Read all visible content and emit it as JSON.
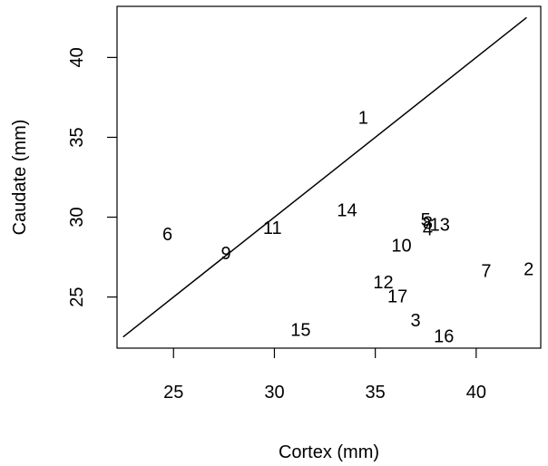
{
  "chart_data": {
    "type": "scatter",
    "title": "",
    "xlabel": "Cortex (mm)",
    "ylabel": "Caudate (mm)",
    "xlim": [
      22.2,
      43.2
    ],
    "ylim": [
      21.8,
      43.2
    ],
    "xticks": [
      25,
      30,
      35,
      40
    ],
    "yticks": [
      25,
      30,
      35,
      40
    ],
    "grid": false,
    "reference_line": {
      "from": [
        22.5,
        22.5
      ],
      "to": [
        42.5,
        42.5
      ]
    },
    "points": [
      {
        "label": "1",
        "x": 34.4,
        "y": 36.2
      },
      {
        "label": "2",
        "x": 42.6,
        "y": 26.7
      },
      {
        "label": "3",
        "x": 37.0,
        "y": 23.5
      },
      {
        "label": "4",
        "x": 37.6,
        "y": 29.2
      },
      {
        "label": "5",
        "x": 37.5,
        "y": 29.8
      },
      {
        "label": "6",
        "x": 24.7,
        "y": 28.9
      },
      {
        "label": "7",
        "x": 40.5,
        "y": 26.6
      },
      {
        "label": "8",
        "x": 37.6,
        "y": 29.6
      },
      {
        "label": "9",
        "x": 27.6,
        "y": 27.7
      },
      {
        "label": "10",
        "x": 36.3,
        "y": 28.2
      },
      {
        "label": "11",
        "x": 29.9,
        "y": 29.3
      },
      {
        "label": "12",
        "x": 35.4,
        "y": 25.9
      },
      {
        "label": "13",
        "x": 38.2,
        "y": 29.5
      },
      {
        "label": "14",
        "x": 33.6,
        "y": 30.4
      },
      {
        "label": "15",
        "x": 31.3,
        "y": 22.9
      },
      {
        "label": "16",
        "x": 38.4,
        "y": 22.5
      },
      {
        "label": "17",
        "x": 36.1,
        "y": 25.0
      }
    ]
  }
}
